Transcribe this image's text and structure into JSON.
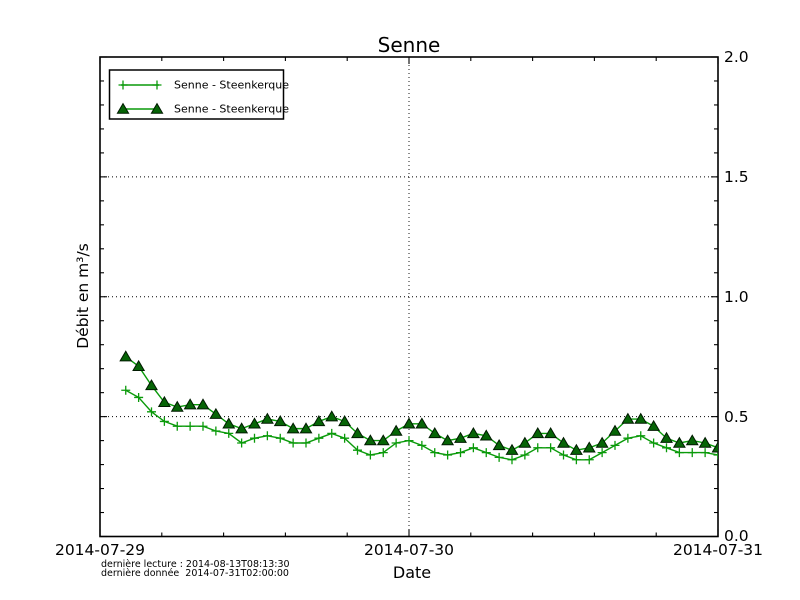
{
  "figure": {
    "background": "#ffffff",
    "frame_color": "#000000",
    "grid_style": "dotted"
  },
  "footer": {
    "last_reading": "dernière lecture : 2014-08-13T08:13:30",
    "last_data": "dernière donnée  2014-07-31T02:00:00"
  },
  "chart_data": {
    "type": "line",
    "title": "Senne",
    "xlabel": "Date",
    "ylabel": "Débit en m³/s",
    "xlim_hours_from_2014_07_29": [
      0,
      48
    ],
    "ylim": [
      0.0,
      2.0
    ],
    "grid": "major gridlines, black dotted",
    "legend_position": "upper left",
    "y_tick_side": "right",
    "x_major_ticks": [
      {
        "hour": 0,
        "label": "2014-07-29"
      },
      {
        "hour": 24,
        "label": "2014-07-30"
      },
      {
        "hour": 48,
        "label": "2014-07-31"
      }
    ],
    "x_minor_tick_hours": [
      4.8,
      9.6,
      14.4,
      19.2,
      28.8,
      33.6,
      38.4,
      43.2
    ],
    "y_major_ticks": [
      {
        "value": 0.0,
        "label": "0.0"
      },
      {
        "value": 0.5,
        "label": "0.5"
      },
      {
        "value": 1.0,
        "label": "1.0"
      },
      {
        "value": 1.5,
        "label": "1.5"
      },
      {
        "value": 2.0,
        "label": "2.0"
      }
    ],
    "y_minor_step": 0.1,
    "series": [
      {
        "name": "Senne - Steenkerque",
        "marker": "plus",
        "line_color": "#0a9a0a",
        "marker_color": "#0a9a0a",
        "start_hour": 2,
        "step_hours": 1,
        "values": [
          0.61,
          0.58,
          0.52,
          0.48,
          0.46,
          0.46,
          0.46,
          0.44,
          0.43,
          0.39,
          0.41,
          0.42,
          0.41,
          0.39,
          0.39,
          0.41,
          0.43,
          0.41,
          0.36,
          0.34,
          0.35,
          0.39,
          0.4,
          0.38,
          0.35,
          0.34,
          0.35,
          0.37,
          0.35,
          0.33,
          0.32,
          0.34,
          0.37,
          0.37,
          0.34,
          0.32,
          0.32,
          0.35,
          0.38,
          0.41,
          0.42,
          0.39,
          0.37,
          0.35,
          0.35,
          0.35,
          0.34
        ]
      },
      {
        "name": "Senne - Steenkerque",
        "marker": "triangle-up",
        "line_color": "#0a9a0a",
        "marker_fill": "#066406",
        "marker_edge": "#001a00",
        "start_hour": 2,
        "step_hours": 1,
        "values": [
          0.75,
          0.71,
          0.63,
          0.56,
          0.54,
          0.55,
          0.55,
          0.51,
          0.47,
          0.45,
          0.47,
          0.49,
          0.48,
          0.45,
          0.45,
          0.48,
          0.5,
          0.48,
          0.43,
          0.4,
          0.4,
          0.44,
          0.47,
          0.47,
          0.43,
          0.4,
          0.41,
          0.43,
          0.42,
          0.38,
          0.36,
          0.39,
          0.43,
          0.43,
          0.39,
          0.36,
          0.37,
          0.39,
          0.44,
          0.49,
          0.49,
          0.46,
          0.41,
          0.39,
          0.4,
          0.39,
          0.37
        ]
      }
    ]
  }
}
